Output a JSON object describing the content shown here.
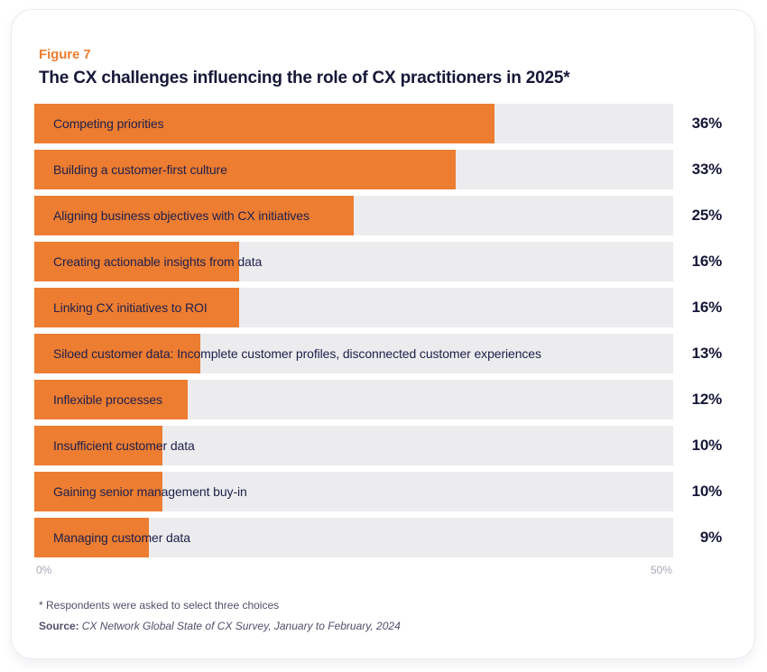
{
  "figure_label": "Figure 7",
  "title": "The CX challenges influencing the role of CX practitioners in 2025*",
  "chart_data": {
    "type": "bar",
    "orientation": "horizontal",
    "title": "The CX challenges influencing the role of CX practitioners in 2025*",
    "categories": [
      "Competing priorities",
      "Building a customer-first culture",
      "Aligning business objectives with CX initiatives",
      "Creating actionable insights from data",
      "Linking CX initiatives to ROI",
      "Siloed customer data: Incomplete customer profiles, disconnected customer experiences",
      "Inflexible processes",
      "Insufficient customer data",
      "Gaining senior management buy-in",
      "Managing customer data"
    ],
    "values": [
      36,
      33,
      25,
      16,
      16,
      13,
      12,
      10,
      10,
      9
    ],
    "value_labels": [
      "36%",
      "33%",
      "25%",
      "16%",
      "16%",
      "13%",
      "12%",
      "10%",
      "10%",
      "9%"
    ],
    "xlim": [
      0,
      50
    ],
    "x_ticks": [
      "0%",
      "50%"
    ],
    "grid": false,
    "legend": false,
    "bar_color": "#ED7D31",
    "track_color": "#ECECEE"
  },
  "footnote": "* Respondents were asked to select three choices",
  "source": {
    "label": "Source:",
    "text": "CX Network Global State of CX Survey, January to February, 2024"
  },
  "colors": {
    "accent_orange": "#ED7D31",
    "navy_text": "#171738",
    "track_gray": "#ECECEE",
    "axis_gray": "#A7A9B6"
  }
}
